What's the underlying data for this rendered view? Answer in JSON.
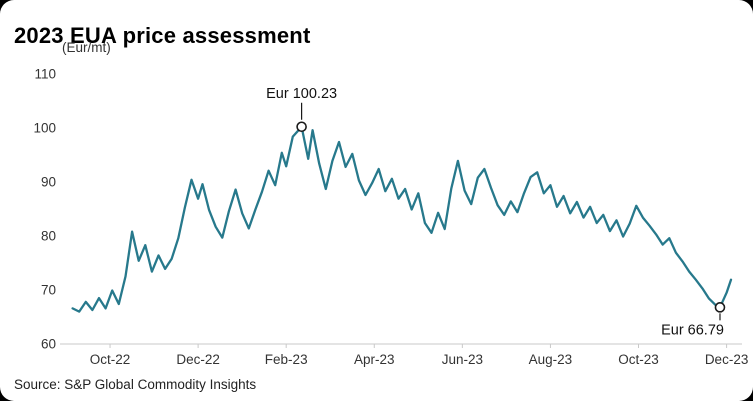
{
  "header": {
    "title": "2023 EUA price assessment",
    "unit_label": "(Eur/mt)"
  },
  "footer": {
    "source": "Source: S&P Global Commodity Insights"
  },
  "chart_data": {
    "type": "line",
    "title": "2023 EUA price assessment",
    "unit_label": "(Eur/mt)",
    "xlabel": "",
    "ylabel": "Eur/mt",
    "ylim": [
      60,
      110
    ],
    "yticks": [
      60,
      70,
      80,
      90,
      100,
      110
    ],
    "xlim": [
      0,
      15.35
    ],
    "x_ticks": [
      {
        "label": "Oct-22",
        "x": 1
      },
      {
        "label": "Dec-22",
        "x": 3
      },
      {
        "label": "Feb-23",
        "x": 5
      },
      {
        "label": "Apr-23",
        "x": 7
      },
      {
        "label": "Jun-23",
        "x": 9
      },
      {
        "label": "Aug-23",
        "x": 11
      },
      {
        "label": "Oct-23",
        "x": 13
      },
      {
        "label": "Dec-23",
        "x": 15
      }
    ],
    "grid": false,
    "legend": false,
    "line_color": "#27798c",
    "axis_color": "#c9c9c9",
    "series": [
      {
        "name": "EUA price",
        "points": [
          [
            0.15,
            66.6
          ],
          [
            0.3,
            66.0
          ],
          [
            0.45,
            67.8
          ],
          [
            0.6,
            66.3
          ],
          [
            0.75,
            68.5
          ],
          [
            0.9,
            66.6
          ],
          [
            1.05,
            69.9
          ],
          [
            1.2,
            67.4
          ],
          [
            1.35,
            72.5
          ],
          [
            1.5,
            80.8
          ],
          [
            1.65,
            75.4
          ],
          [
            1.8,
            78.3
          ],
          [
            1.95,
            73.4
          ],
          [
            2.1,
            76.4
          ],
          [
            2.25,
            73.9
          ],
          [
            2.4,
            75.8
          ],
          [
            2.55,
            79.6
          ],
          [
            2.7,
            85.3
          ],
          [
            2.85,
            90.4
          ],
          [
            3.0,
            86.9
          ],
          [
            3.1,
            89.6
          ],
          [
            3.25,
            84.8
          ],
          [
            3.4,
            81.7
          ],
          [
            3.55,
            79.7
          ],
          [
            3.7,
            84.6
          ],
          [
            3.85,
            88.6
          ],
          [
            4.0,
            84.2
          ],
          [
            4.15,
            81.4
          ],
          [
            4.3,
            84.9
          ],
          [
            4.45,
            88.2
          ],
          [
            4.6,
            92.1
          ],
          [
            4.75,
            89.4
          ],
          [
            4.9,
            95.4
          ],
          [
            5.0,
            92.9
          ],
          [
            5.15,
            98.4
          ],
          [
            5.35,
            100.23
          ],
          [
            5.5,
            94.3
          ],
          [
            5.6,
            99.6
          ],
          [
            5.75,
            93.4
          ],
          [
            5.9,
            88.7
          ],
          [
            6.05,
            93.9
          ],
          [
            6.2,
            97.4
          ],
          [
            6.35,
            92.8
          ],
          [
            6.5,
            95.2
          ],
          [
            6.65,
            90.3
          ],
          [
            6.8,
            87.6
          ],
          [
            6.95,
            89.8
          ],
          [
            7.1,
            92.4
          ],
          [
            7.25,
            88.3
          ],
          [
            7.4,
            90.6
          ],
          [
            7.55,
            86.9
          ],
          [
            7.7,
            88.7
          ],
          [
            7.85,
            84.9
          ],
          [
            8.0,
            87.9
          ],
          [
            8.15,
            82.4
          ],
          [
            8.3,
            80.6
          ],
          [
            8.45,
            84.3
          ],
          [
            8.6,
            81.3
          ],
          [
            8.75,
            88.8
          ],
          [
            8.9,
            93.9
          ],
          [
            9.05,
            88.4
          ],
          [
            9.2,
            85.9
          ],
          [
            9.35,
            90.8
          ],
          [
            9.5,
            92.4
          ],
          [
            9.65,
            88.9
          ],
          [
            9.8,
            85.7
          ],
          [
            9.95,
            83.9
          ],
          [
            10.1,
            86.4
          ],
          [
            10.25,
            84.4
          ],
          [
            10.4,
            87.9
          ],
          [
            10.55,
            90.9
          ],
          [
            10.7,
            91.8
          ],
          [
            10.85,
            87.9
          ],
          [
            11.0,
            89.4
          ],
          [
            11.15,
            85.4
          ],
          [
            11.3,
            87.4
          ],
          [
            11.45,
            84.2
          ],
          [
            11.6,
            86.3
          ],
          [
            11.75,
            83.4
          ],
          [
            11.9,
            85.4
          ],
          [
            12.05,
            82.4
          ],
          [
            12.2,
            83.9
          ],
          [
            12.35,
            80.9
          ],
          [
            12.5,
            82.9
          ],
          [
            12.65,
            79.9
          ],
          [
            12.8,
            82.3
          ],
          [
            12.95,
            85.6
          ],
          [
            13.1,
            83.4
          ],
          [
            13.25,
            81.9
          ],
          [
            13.4,
            80.3
          ],
          [
            13.55,
            78.4
          ],
          [
            13.7,
            79.6
          ],
          [
            13.85,
            76.9
          ],
          [
            14.0,
            75.3
          ],
          [
            14.15,
            73.4
          ],
          [
            14.3,
            71.9
          ],
          [
            14.45,
            70.3
          ],
          [
            14.6,
            68.4
          ],
          [
            14.75,
            67.2
          ],
          [
            14.85,
            66.79
          ],
          [
            15.0,
            69.5
          ],
          [
            15.1,
            71.9
          ]
        ]
      }
    ],
    "annotations": [
      {
        "label": "Eur 100.23",
        "x": 5.35,
        "y": 100.23,
        "position": "above"
      },
      {
        "label": "Eur 66.79",
        "x": 14.85,
        "y": 66.79,
        "position": "below"
      }
    ]
  }
}
